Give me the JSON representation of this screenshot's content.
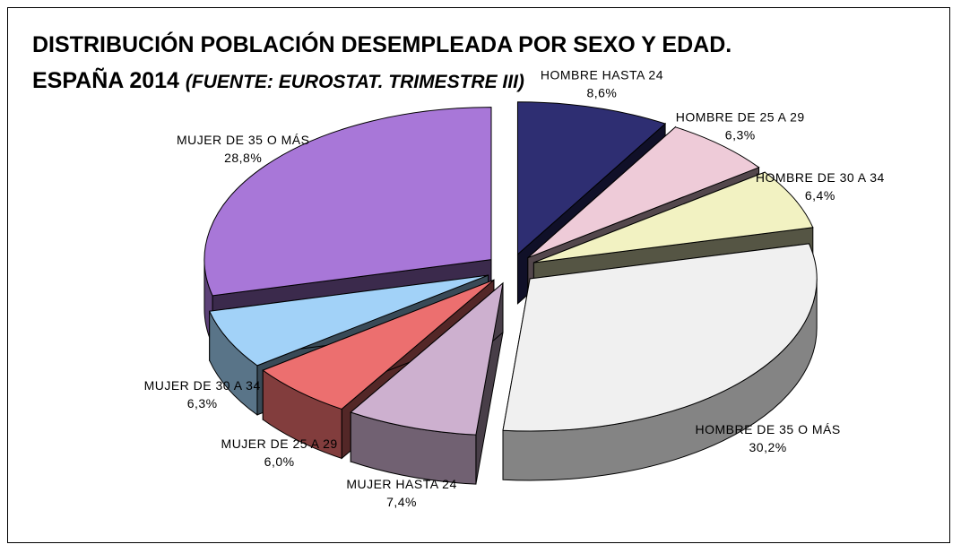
{
  "chart_data": {
    "type": "pie3d",
    "title": "DISTRIBUCIÓN POBLACIÓN DESEMPLEADA POR SEXO Y EDAD. ESPAÑA 2014",
    "subtitle": "(FUENTE: EUROSTAT. TRIMESTRE III)",
    "categories": [
      "HOMBRE HASTA 24",
      "HOMBRE DE 25 A 29",
      "HOMBRE DE 30 A 34",
      "HOMBRE DE 35 O MÁS",
      "MUJER HASTA 24",
      "MUJER DE 25 A 29",
      "MUJER DE 30 A 34",
      "MUJER DE 35 O MÁS"
    ],
    "values": [
      8.6,
      6.3,
      6.4,
      30.2,
      7.4,
      6.0,
      6.3,
      28.8
    ],
    "value_labels": [
      "8,6%",
      "6,3%",
      "6,4%",
      "30,2%",
      "7,4%",
      "6,0%",
      "6,3%",
      "28,8%"
    ],
    "colors": [
      "#2e2e72",
      "#eecbd8",
      "#f2f2c2",
      "#f0f0f0",
      "#cdb0cf",
      "#ec6f6f",
      "#a2d2f8",
      "#a877d8"
    ]
  }
}
